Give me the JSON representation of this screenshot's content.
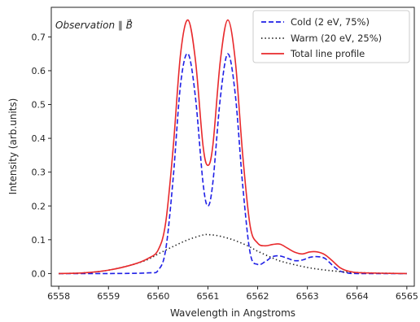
{
  "chart_data": {
    "type": "line",
    "title": "",
    "xlabel": "Wavelength in Angstroms",
    "ylabel": "Intensity (arb.units)",
    "xlim": [
      6557.85,
      6565.15
    ],
    "ylim": [
      -0.0375,
      0.7875
    ],
    "xticks": [
      6558,
      6559,
      6560,
      6561,
      6562,
      6563,
      6564,
      6565
    ],
    "yticks": [
      0.0,
      0.1,
      0.2,
      0.3,
      0.4,
      0.5,
      0.6,
      0.7
    ],
    "xtick_labels": [
      "6558",
      "6559",
      "6560",
      "6561",
      "6562",
      "6563",
      "6564",
      "6565"
    ],
    "ytick_labels": [
      "0.0",
      "0.1",
      "0.2",
      "0.3",
      "0.4",
      "0.5",
      "0.6",
      "0.7"
    ],
    "annotation": "Observation ∥ B⃗",
    "annotation_main": "Observation ∥ ",
    "annotation_b": "B",
    "annotation_arrow": "→",
    "legend_position": "top-right",
    "grid": false,
    "series": [
      {
        "name": "Cold (2 eV, 75%)",
        "color": "#1f1fe6",
        "style": "dashed",
        "x": [
          6558.0,
          6559.0,
          6559.8,
          6560.0,
          6560.15,
          6560.3,
          6560.45,
          6560.6,
          6560.75,
          6560.9,
          6561.0,
          6561.1,
          6561.25,
          6561.4,
          6561.55,
          6561.7,
          6561.85,
          6562.0,
          6562.15,
          6562.3,
          6562.45,
          6562.6,
          6562.75,
          6562.9,
          6563.05,
          6563.2,
          6563.35,
          6563.5,
          6563.65,
          6563.8,
          6564.0,
          6565.0
        ],
        "y": [
          0.0,
          0.0,
          0.002,
          0.01,
          0.07,
          0.28,
          0.56,
          0.65,
          0.52,
          0.27,
          0.2,
          0.27,
          0.52,
          0.65,
          0.53,
          0.26,
          0.06,
          0.027,
          0.035,
          0.05,
          0.052,
          0.045,
          0.038,
          0.04,
          0.048,
          0.05,
          0.045,
          0.025,
          0.008,
          0.002,
          0.0,
          0.0
        ]
      },
      {
        "name": "Warm (20 eV, 25%)",
        "color": "#222222",
        "style": "dotted",
        "x": [
          6558.0,
          6558.5,
          6559.0,
          6559.5,
          6559.8,
          6560.0,
          6560.3,
          6560.6,
          6560.9,
          6561.0,
          6561.2,
          6561.5,
          6561.8,
          6562.0,
          6562.3,
          6562.5,
          6563.0,
          6563.5,
          6564.0,
          6564.5,
          6565.0
        ],
        "y": [
          0.0,
          0.002,
          0.01,
          0.027,
          0.042,
          0.058,
          0.08,
          0.1,
          0.114,
          0.115,
          0.112,
          0.1,
          0.082,
          0.066,
          0.046,
          0.035,
          0.018,
          0.008,
          0.003,
          0.001,
          0.0
        ]
      },
      {
        "name": "Total line profile",
        "color": "#e8292c",
        "style": "solid",
        "x": [
          6558.0,
          6558.5,
          6559.0,
          6559.5,
          6559.8,
          6560.0,
          6560.15,
          6560.3,
          6560.45,
          6560.6,
          6560.75,
          6560.9,
          6561.0,
          6561.1,
          6561.25,
          6561.4,
          6561.55,
          6561.7,
          6561.85,
          6562.0,
          6562.15,
          6562.3,
          6562.45,
          6562.6,
          6562.75,
          6562.9,
          6563.05,
          6563.2,
          6563.35,
          6563.5,
          6563.65,
          6563.8,
          6564.0,
          6564.5,
          6565.0
        ],
        "y": [
          0.0,
          0.002,
          0.01,
          0.027,
          0.045,
          0.07,
          0.15,
          0.37,
          0.65,
          0.75,
          0.63,
          0.38,
          0.32,
          0.38,
          0.63,
          0.75,
          0.63,
          0.35,
          0.14,
          0.09,
          0.082,
          0.086,
          0.087,
          0.075,
          0.063,
          0.058,
          0.064,
          0.064,
          0.056,
          0.038,
          0.018,
          0.008,
          0.003,
          0.001,
          0.0
        ]
      }
    ]
  }
}
